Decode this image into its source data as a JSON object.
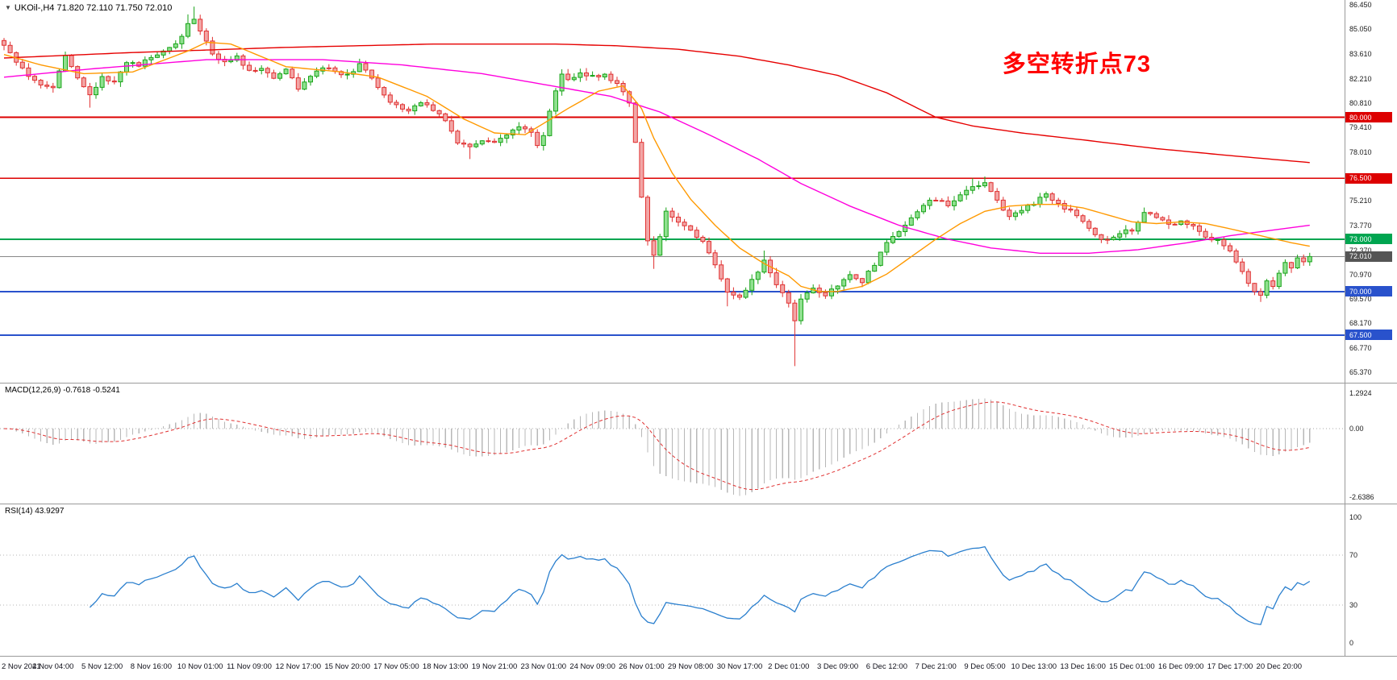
{
  "header": {
    "collapse_icon": "▼",
    "symbol_line": "UKOil-,H4 71.820 72.110 71.750 72.010"
  },
  "annotation": {
    "text": "多空转折点73",
    "color": "#ff0000"
  },
  "chart_data": {
    "type": "candlestick",
    "symbol": "UKOil-",
    "timeframe": "H4",
    "last_bar": {
      "open": 71.82,
      "high": 72.11,
      "low": 71.75,
      "close": 72.01
    },
    "price_axis": {
      "min": 65.37,
      "max": 86.45,
      "ticks": [
        "86.450",
        "85.050",
        "83.610",
        "82.210",
        "80.810",
        "79.410",
        "78.010",
        "75.210",
        "73.770",
        "72.370",
        "70.970",
        "69.570",
        "68.170",
        "66.770",
        "65.370"
      ]
    },
    "hlines": [
      {
        "price": 80.0,
        "label": "80.000",
        "color": "#dd0000",
        "width": 2
      },
      {
        "price": 76.5,
        "label": "76.500",
        "color": "#dd0000",
        "width": 1.4
      },
      {
        "price": 73.0,
        "label": "73.000",
        "color": "#00a550",
        "width": 2
      },
      {
        "price": 70.0,
        "label": "70.000",
        "color": "#2952cc",
        "width": 2
      },
      {
        "price": 67.5,
        "label": "67.500",
        "color": "#2952cc",
        "width": 2
      }
    ],
    "current_price": {
      "price": 72.01,
      "label": "72.010",
      "line_color": "#888888",
      "badge_color": "#555555"
    },
    "x_labels": [
      "2 Nov 2021",
      "4 Nov 04:00",
      "5 Nov 12:00",
      "8 Nov 16:00",
      "10 Nov 01:00",
      "11 Nov 09:00",
      "12 Nov 17:00",
      "15 Nov 20:00",
      "17 Nov 05:00",
      "18 Nov 13:00",
      "19 Nov 21:00",
      "23 Nov 01:00",
      "24 Nov 09:00",
      "26 Nov 01:00",
      "29 Nov 08:00",
      "30 Nov 17:00",
      "2 Dec 01:00",
      "3 Dec 09:00",
      "6 Dec 12:00",
      "7 Dec 21:00",
      "9 Dec 05:00",
      "10 Dec 13:00",
      "13 Dec 16:00",
      "15 Dec 01:00",
      "16 Dec 09:00",
      "17 Dec 17:00",
      "20 Dec 20:00"
    ],
    "candles_per_label": 8,
    "candle_count": 214,
    "first_open": 84.4,
    "close_anchors": [
      [
        0,
        84.1
      ],
      [
        1,
        83.7
      ],
      [
        2,
        83.2
      ],
      [
        4,
        82.3
      ],
      [
        6,
        81.8
      ],
      [
        8,
        81.6
      ],
      [
        9,
        82.6
      ],
      [
        10,
        83.6
      ],
      [
        12,
        82.3
      ],
      [
        14,
        81.3
      ],
      [
        16,
        82.3
      ],
      [
        18,
        82.0
      ],
      [
        20,
        83.2
      ],
      [
        22,
        83.0
      ],
      [
        24,
        83.4
      ],
      [
        26,
        83.8
      ],
      [
        28,
        84.2
      ],
      [
        29,
        84.6
      ],
      [
        30,
        85.3
      ],
      [
        31,
        85.6
      ],
      [
        32,
        85.0
      ],
      [
        33,
        84.4
      ],
      [
        34,
        83.6
      ],
      [
        36,
        83.2
      ],
      [
        38,
        83.5
      ],
      [
        40,
        82.6
      ],
      [
        42,
        82.9
      ],
      [
        44,
        82.3
      ],
      [
        46,
        82.7
      ],
      [
        48,
        81.7
      ],
      [
        50,
        82.4
      ],
      [
        52,
        82.9
      ],
      [
        54,
        82.6
      ],
      [
        56,
        82.4
      ],
      [
        58,
        83.0
      ],
      [
        60,
        82.3
      ],
      [
        62,
        81.2
      ],
      [
        64,
        80.7
      ],
      [
        66,
        80.3
      ],
      [
        68,
        80.9
      ],
      [
        70,
        80.4
      ],
      [
        72,
        79.8
      ],
      [
        74,
        78.6
      ],
      [
        76,
        78.3
      ],
      [
        78,
        78.7
      ],
      [
        80,
        78.5
      ],
      [
        82,
        79.0
      ],
      [
        84,
        79.4
      ],
      [
        86,
        79.2
      ],
      [
        87,
        78.4
      ],
      [
        88,
        79.0
      ],
      [
        89,
        80.3
      ],
      [
        90,
        81.6
      ],
      [
        91,
        82.4
      ],
      [
        92,
        82.2
      ],
      [
        94,
        82.5
      ],
      [
        96,
        82.3
      ],
      [
        98,
        82.5
      ],
      [
        100,
        81.9
      ],
      [
        102,
        80.9
      ],
      [
        103,
        78.5
      ],
      [
        104,
        75.5
      ],
      [
        105,
        73.0
      ],
      [
        106,
        72.0
      ],
      [
        107,
        73.2
      ],
      [
        108,
        74.6
      ],
      [
        110,
        74.0
      ],
      [
        112,
        73.5
      ],
      [
        114,
        72.8
      ],
      [
        116,
        71.5
      ],
      [
        118,
        70.0
      ],
      [
        120,
        69.7
      ],
      [
        122,
        70.6
      ],
      [
        124,
        71.8
      ],
      [
        126,
        70.4
      ],
      [
        128,
        69.3
      ],
      [
        129,
        68.3
      ],
      [
        130,
        69.5
      ],
      [
        132,
        70.2
      ],
      [
        134,
        69.8
      ],
      [
        136,
        70.3
      ],
      [
        138,
        71.0
      ],
      [
        140,
        70.6
      ],
      [
        142,
        71.6
      ],
      [
        144,
        72.8
      ],
      [
        146,
        73.4
      ],
      [
        148,
        74.2
      ],
      [
        150,
        75.0
      ],
      [
        152,
        75.3
      ],
      [
        154,
        74.9
      ],
      [
        156,
        75.5
      ],
      [
        158,
        76.0
      ],
      [
        160,
        76.2
      ],
      [
        162,
        75.2
      ],
      [
        164,
        74.3
      ],
      [
        166,
        74.7
      ],
      [
        168,
        75.1
      ],
      [
        170,
        75.6
      ],
      [
        172,
        75.0
      ],
      [
        174,
        74.6
      ],
      [
        176,
        74.0
      ],
      [
        178,
        73.2
      ],
      [
        180,
        72.9
      ],
      [
        182,
        73.4
      ],
      [
        184,
        73.5
      ],
      [
        186,
        74.6
      ],
      [
        188,
        74.3
      ],
      [
        190,
        73.9
      ],
      [
        192,
        74.0
      ],
      [
        194,
        73.7
      ],
      [
        196,
        73.2
      ],
      [
        198,
        72.9
      ],
      [
        200,
        72.3
      ],
      [
        202,
        71.2
      ],
      [
        203,
        70.5
      ],
      [
        204,
        70.0
      ],
      [
        205,
        69.8
      ],
      [
        206,
        70.6
      ],
      [
        207,
        70.2
      ],
      [
        208,
        71.0
      ],
      [
        209,
        71.6
      ],
      [
        210,
        71.4
      ],
      [
        211,
        71.9
      ],
      [
        212,
        71.8
      ],
      [
        213,
        72.01
      ]
    ],
    "high_overrides": {
      "30": 85.9,
      "31": 86.35,
      "91": 82.75,
      "124": 72.35,
      "158": 76.5,
      "160": 76.6
    },
    "low_overrides": {
      "14": 80.55,
      "76": 77.6,
      "106": 71.3,
      "118": 69.15,
      "129": 65.72,
      "205": 69.4
    },
    "moving_averages": [
      {
        "name": "slow-ma",
        "color": "#e60000",
        "anchors": [
          [
            0,
            83.4
          ],
          [
            20,
            83.7
          ],
          [
            45,
            84.0
          ],
          [
            70,
            84.2
          ],
          [
            90,
            84.2
          ],
          [
            100,
            84.1
          ],
          [
            110,
            83.9
          ],
          [
            120,
            83.5
          ],
          [
            128,
            83.0
          ],
          [
            136,
            82.4
          ],
          [
            144,
            81.4
          ],
          [
            152,
            80.0
          ],
          [
            158,
            79.5
          ],
          [
            166,
            79.1
          ],
          [
            176,
            78.7
          ],
          [
            188,
            78.2
          ],
          [
            200,
            77.8
          ],
          [
            213,
            77.4
          ]
        ]
      },
      {
        "name": "mid-ma",
        "color": "#ff00dd",
        "anchors": [
          [
            0,
            82.3
          ],
          [
            15,
            82.8
          ],
          [
            33,
            83.3
          ],
          [
            52,
            83.3
          ],
          [
            65,
            83.0
          ],
          [
            78,
            82.5
          ],
          [
            91,
            81.7
          ],
          [
            99,
            81.2
          ],
          [
            107,
            80.3
          ],
          [
            115,
            79.0
          ],
          [
            123,
            77.6
          ],
          [
            130,
            76.2
          ],
          [
            138,
            74.9
          ],
          [
            146,
            73.8
          ],
          [
            154,
            73.0
          ],
          [
            161,
            72.5
          ],
          [
            169,
            72.2
          ],
          [
            177,
            72.2
          ],
          [
            185,
            72.4
          ],
          [
            193,
            72.8
          ],
          [
            200,
            73.2
          ],
          [
            213,
            73.8
          ]
        ]
      },
      {
        "name": "fast-ma",
        "color": "#ff9900",
        "anchors": [
          [
            0,
            83.6
          ],
          [
            6,
            83.0
          ],
          [
            13,
            82.5
          ],
          [
            21,
            82.6
          ],
          [
            30,
            83.8
          ],
          [
            33,
            84.3
          ],
          [
            37,
            84.2
          ],
          [
            46,
            82.9
          ],
          [
            55,
            82.6
          ],
          [
            61,
            82.3
          ],
          [
            69,
            81.2
          ],
          [
            75,
            79.9
          ],
          [
            80,
            79.1
          ],
          [
            85,
            79.0
          ],
          [
            92,
            80.5
          ],
          [
            97,
            81.5
          ],
          [
            101,
            81.8
          ],
          [
            104,
            80.5
          ],
          [
            106,
            78.8
          ],
          [
            109,
            76.8
          ],
          [
            112,
            75.3
          ],
          [
            116,
            73.8
          ],
          [
            120,
            72.5
          ],
          [
            124,
            71.6
          ],
          [
            128,
            70.9
          ],
          [
            130,
            70.3
          ],
          [
            133,
            70.0
          ],
          [
            136,
            70.0
          ],
          [
            140,
            70.3
          ],
          [
            144,
            71.0
          ],
          [
            148,
            72.0
          ],
          [
            152,
            73.0
          ],
          [
            156,
            73.9
          ],
          [
            160,
            74.6
          ],
          [
            164,
            74.9
          ],
          [
            168,
            75.0
          ],
          [
            172,
            75.0
          ],
          [
            176,
            74.8
          ],
          [
            180,
            74.4
          ],
          [
            184,
            74.0
          ],
          [
            188,
            73.9
          ],
          [
            192,
            74.0
          ],
          [
            196,
            73.9
          ],
          [
            200,
            73.6
          ],
          [
            205,
            73.2
          ],
          [
            210,
            72.8
          ],
          [
            213,
            72.6
          ]
        ]
      }
    ],
    "colors": {
      "bull": "#18a318",
      "bull_fill": "#8fe08f",
      "bear": "#e03030",
      "bear_fill": "#f2a6a6",
      "macd_hist": "#b8b8b8",
      "macd_signal": "#e03030",
      "rsi_line": "#2a7fce"
    },
    "macd": {
      "label": "MACD(12,26,9) -0.7618 -0.5241",
      "fast": 12,
      "slow": 26,
      "signal": 9,
      "current_macd": -0.7618,
      "current_signal": -0.5241,
      "axis_ticks": [
        "1.2924",
        "0.00",
        "-2.6386"
      ]
    },
    "rsi": {
      "label": "RSI(14) 43.9297",
      "period": 14,
      "current": 43.9297,
      "axis_ticks": [
        "100",
        "70",
        "30",
        "0"
      ]
    }
  }
}
